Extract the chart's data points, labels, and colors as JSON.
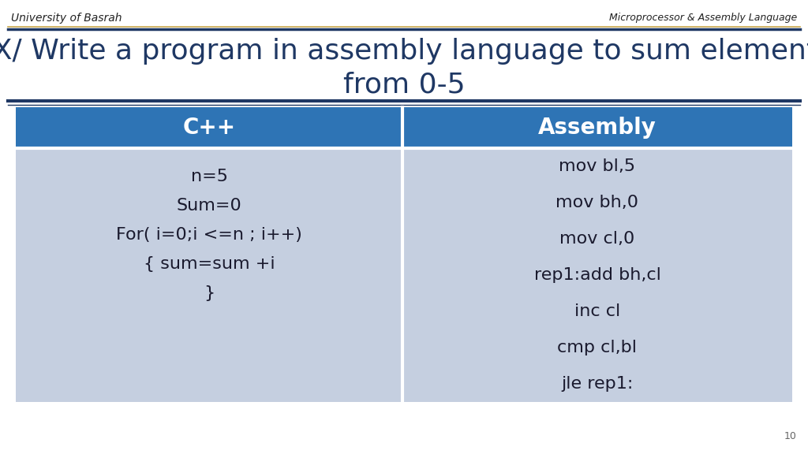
{
  "bg_color": "#ffffff",
  "header_left": "University of Basrah",
  "header_right": "Microprocessor & Assembly Language",
  "title_line1": "EX/ Write a program in assembly language to sum elements",
  "title_line2": "from 0-5",
  "title_color": "#1f3864",
  "table_header_bg": "#2e74b5",
  "table_header_text_color": "#ffffff",
  "table_body_bg": "#c5cfe0",
  "table_divider_color": "#ffffff",
  "col1_header": "C++",
  "col2_header": "Assembly",
  "col1_lines": [
    "n=5",
    "Sum=0",
    "For( i=0;i <=n ; i++)",
    "{ sum=sum +i",
    "}"
  ],
  "col2_lines": [
    "mov bl,5",
    "mov bh,0",
    "mov cl,0",
    "rep1:add bh,cl",
    "inc cl",
    "cmp cl,bl",
    "jle rep1:"
  ],
  "table_text_color": "#1a1a2e",
  "page_number": "10",
  "header_line_color": "#1f3864",
  "gold_line_color": "#c9a84c"
}
